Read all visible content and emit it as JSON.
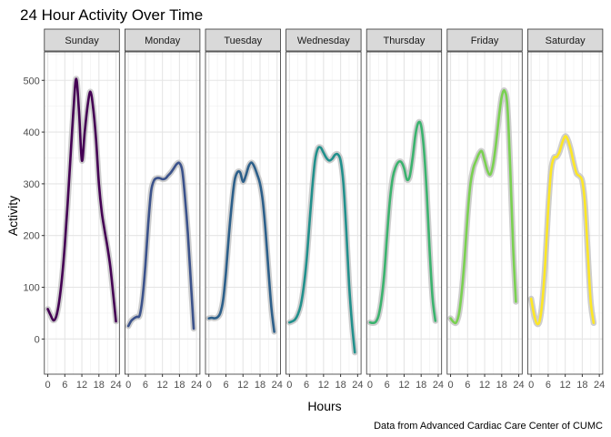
{
  "chart_data": {
    "type": "line",
    "title": "24 Hour Activity Over Time",
    "xlabel": "Hours",
    "ylabel": "Activity",
    "caption": "Data from Advanced Cardiac Care Center of CUMC",
    "xlim": [
      -1.2,
      25.2
    ],
    "ylim": [
      -68,
      555
    ],
    "x_ticks": [
      0,
      6,
      12,
      18,
      24
    ],
    "x_tick_labels": [
      "0",
      "6",
      "12",
      "18",
      "24"
    ],
    "y_ticks": [
      0,
      100,
      200,
      300,
      400,
      500
    ],
    "y_tick_labels": [
      "0",
      "100",
      "200",
      "300",
      "400",
      "500"
    ],
    "grid": true,
    "facets": [
      {
        "name": "Sunday",
        "color": "#440154",
        "x": [
          0,
          1,
          2,
          3,
          4,
          5,
          6,
          7,
          8,
          9,
          10,
          11,
          12,
          13,
          14,
          15,
          16,
          17,
          18,
          19,
          20,
          21,
          22,
          23,
          24
        ],
        "y": [
          58,
          46,
          36,
          44,
          72,
          118,
          182,
          262,
          352,
          440,
          503,
          440,
          345,
          400,
          450,
          478,
          445,
          385,
          300,
          245,
          210,
          178,
          140,
          88,
          34
        ]
      },
      {
        "name": "Monday",
        "color": "#3b528b",
        "x": [
          0,
          1,
          2,
          3,
          4,
          5,
          6,
          7,
          8,
          9,
          10,
          11,
          12,
          13,
          14,
          15,
          16,
          17,
          18,
          19,
          20,
          21,
          22,
          23,
          24
        ],
        "y": [
          25,
          35,
          40,
          43,
          46,
          80,
          142,
          222,
          285,
          306,
          311,
          311,
          309,
          310,
          316,
          322,
          330,
          338,
          340,
          325,
          270,
          200,
          110,
          20,
          null
        ]
      },
      {
        "name": "Tuesday",
        "color": "#2c5f8a",
        "x": [
          0,
          1,
          2,
          3,
          4,
          5,
          6,
          7,
          8,
          9,
          10,
          11,
          12,
          13,
          14,
          15,
          16,
          17,
          18,
          19,
          20,
          21,
          22,
          23,
          24
        ],
        "y": [
          40,
          41,
          40,
          42,
          50,
          75,
          128,
          198,
          258,
          305,
          322,
          322,
          304,
          316,
          334,
          341,
          333,
          318,
          300,
          265,
          205,
          130,
          60,
          14,
          null
        ]
      },
      {
        "name": "Wednesday",
        "color": "#21908c",
        "x": [
          0,
          1,
          2,
          3,
          4,
          5,
          6,
          7,
          8,
          9,
          10,
          11,
          12,
          13,
          14,
          15,
          16,
          17,
          18,
          19,
          20,
          21,
          22,
          23,
          24
        ],
        "y": [
          32,
          34,
          38,
          48,
          66,
          100,
          150,
          220,
          290,
          345,
          368,
          370,
          360,
          350,
          345,
          348,
          356,
          357,
          345,
          300,
          210,
          105,
          30,
          -26,
          null
        ]
      },
      {
        "name": "Thursday",
        "color": "#3bb36e",
        "x": [
          0,
          1,
          2,
          3,
          4,
          5,
          6,
          7,
          8,
          9,
          10,
          11,
          12,
          13,
          14,
          15,
          16,
          17,
          18,
          19,
          20,
          21,
          22,
          23,
          24
        ],
        "y": [
          32,
          31,
          33,
          45,
          75,
          125,
          200,
          268,
          312,
          332,
          342,
          342,
          330,
          308,
          315,
          350,
          395,
          418,
          412,
          365,
          280,
          170,
          80,
          35,
          null
        ]
      },
      {
        "name": "Friday",
        "color": "#7ad151",
        "x": [
          0,
          1,
          2,
          3,
          4,
          5,
          6,
          7,
          8,
          9,
          10,
          11,
          12,
          13,
          14,
          15,
          16,
          17,
          18,
          19,
          20,
          21,
          22,
          23,
          24
        ],
        "y": [
          40,
          33,
          32,
          50,
          95,
          160,
          240,
          300,
          330,
          345,
          358,
          363,
          345,
          325,
          318,
          338,
          378,
          428,
          468,
          480,
          450,
          330,
          180,
          72,
          null
        ]
      },
      {
        "name": "Saturday",
        "color": "#fde725",
        "x": [
          0,
          1,
          2,
          3,
          4,
          5,
          6,
          7,
          8,
          9,
          10,
          11,
          12,
          13,
          14,
          15,
          16,
          17,
          18,
          19,
          20,
          21,
          22,
          23,
          24
        ],
        "y": [
          78,
          48,
          30,
          35,
          75,
          150,
          250,
          325,
          350,
          352,
          362,
          380,
          392,
          384,
          365,
          340,
          320,
          315,
          305,
          258,
          160,
          70,
          31,
          null,
          null
        ]
      }
    ]
  }
}
